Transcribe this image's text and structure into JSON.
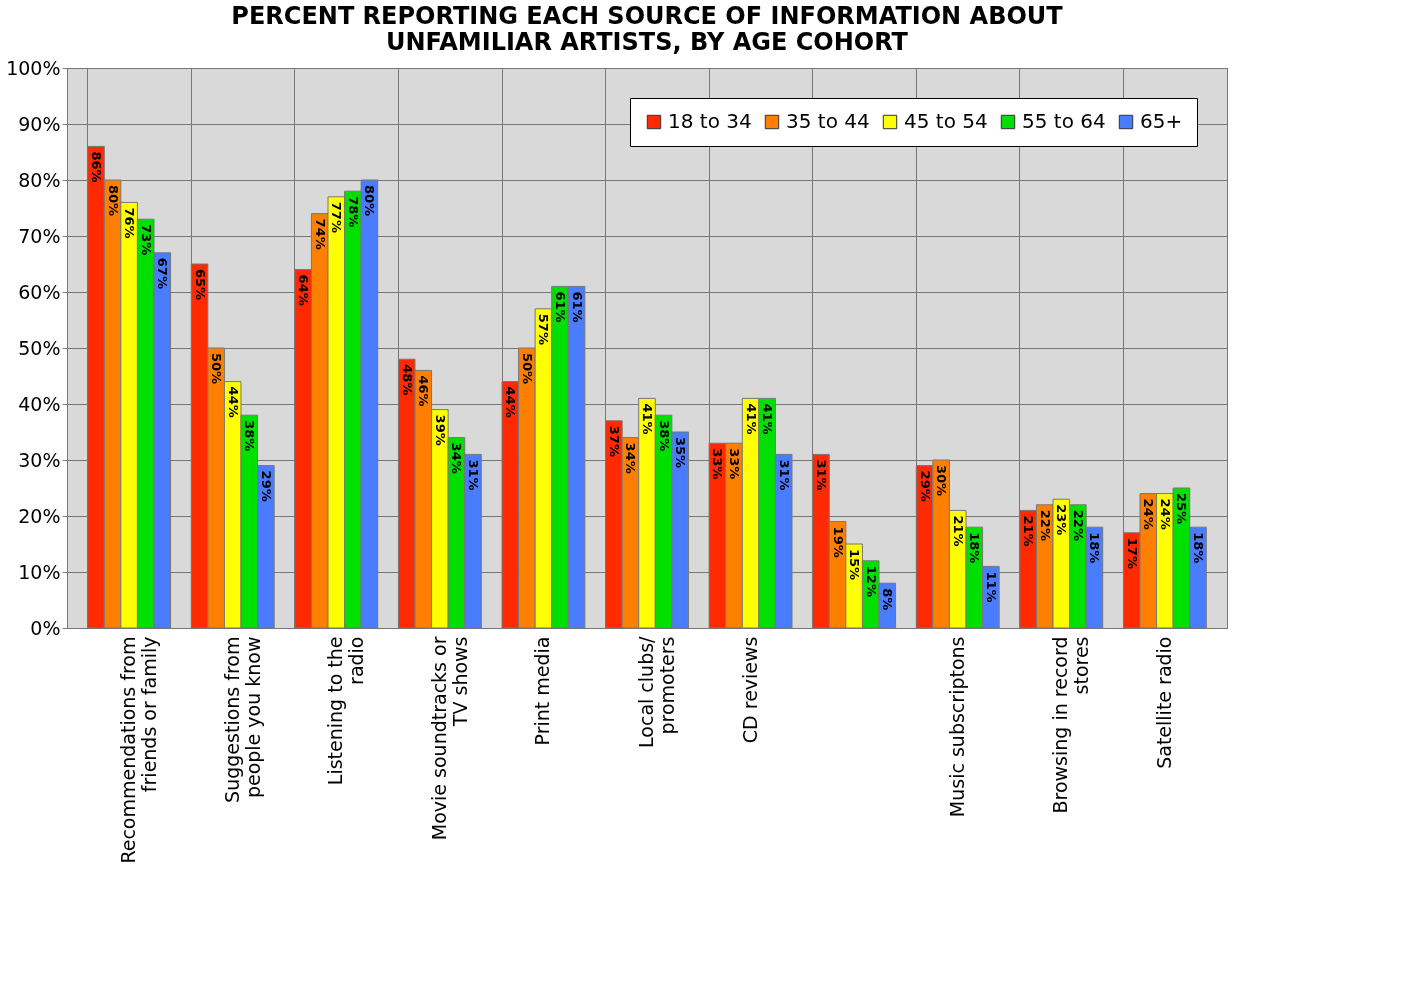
{
  "chart_data": {
    "type": "bar",
    "title": "PERCENT REPORTING EACH SOURCE OF INFORMATION ABOUT UNFAMILIAR ARTISTS, BY AGE COHORT",
    "categories": [
      "Recommendations from friends or family",
      "Suggestions from people you know",
      "Listening to the radio",
      "Movie soundtracks or TV shows",
      "Print media",
      "Local clubs/ promoters",
      "CD reviews",
      null,
      "Music subscriptons",
      "Browsing in record stores",
      "Satellite radio"
    ],
    "series": [
      {
        "name": "18 to 34",
        "color": "#ff2a00",
        "values": [
          86,
          65,
          64,
          48,
          44,
          37,
          33,
          31,
          29,
          21,
          17
        ],
        "value_labels": [
          "86%",
          "65%",
          "64%",
          "48%",
          "44%",
          "37%",
          "33%",
          "31%",
          "29%",
          "21%",
          "17%"
        ]
      },
      {
        "name": "35 to 44",
        "color": "#ff7f00",
        "values": [
          80,
          50,
          74,
          46,
          50,
          34,
          33,
          19,
          30,
          22,
          24
        ],
        "value_labels": [
          "80%",
          "50%",
          "74%",
          "46%",
          "50%",
          "34%",
          "33%",
          "19%",
          "30%",
          "22%",
          "24%"
        ]
      },
      {
        "name": "45 to 54",
        "color": "#ffff00",
        "values": [
          76,
          44,
          77,
          39,
          57,
          41,
          41,
          15,
          21,
          23,
          24
        ],
        "value_labels": [
          "76%",
          "44%",
          "77%",
          "39%",
          "57%",
          "41%",
          "41%",
          "15%",
          "21%",
          "23%",
          "24%"
        ]
      },
      {
        "name": "55 to 64",
        "color": "#00e000",
        "values": [
          73,
          38,
          78,
          34,
          61,
          38,
          41,
          12,
          18,
          22,
          25
        ],
        "value_labels": [
          "73%",
          "38%",
          "78%",
          "34%",
          "61%",
          "38%",
          "41%",
          "12%",
          "18%",
          "22%",
          "25%"
        ]
      },
      {
        "name": "65+",
        "color": "#4a7cff",
        "values": [
          67,
          29,
          80,
          31,
          61,
          35,
          31,
          8,
          11,
          18,
          18
        ],
        "value_labels": [
          "67%",
          "29%",
          "80%",
          "31%",
          "61%",
          "35%",
          "31%",
          "8%",
          "11%",
          "18%",
          "18%"
        ]
      }
    ],
    "ylim": [
      0,
      100
    ],
    "yticks": [
      {
        "value": 0,
        "label": "0%"
      },
      {
        "value": 10,
        "label": "10%"
      },
      {
        "value": 20,
        "label": "20%"
      },
      {
        "value": 30,
        "label": "30%"
      },
      {
        "value": 40,
        "label": "40%"
      },
      {
        "value": 50,
        "label": "50%"
      },
      {
        "value": 60,
        "label": "60%"
      },
      {
        "value": 70,
        "label": "70%"
      },
      {
        "value": 80,
        "label": "80%"
      },
      {
        "value": 90,
        "label": "90%"
      },
      {
        "value": 100,
        "label": "100%"
      }
    ],
    "grid": true,
    "legend": "top right"
  }
}
